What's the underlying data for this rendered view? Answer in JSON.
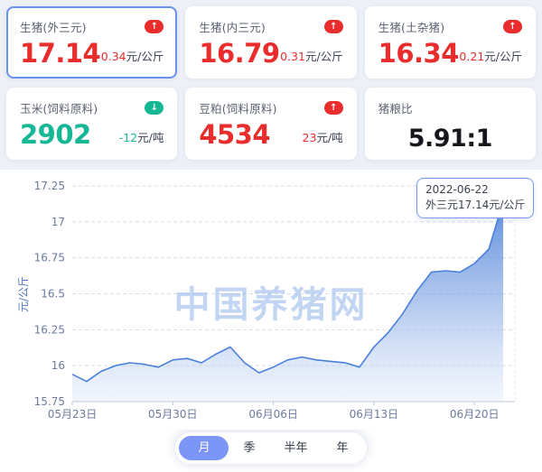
{
  "colors": {
    "red": "#e92c2c",
    "green": "#15b795",
    "line_blue": "#4a80db",
    "selected_border": "#6a92f0",
    "tab_active_bg": "#7b96f6",
    "tooltip_border": "#6c9cf5",
    "watermark_blue": "#8fb2e8"
  },
  "cards": [
    {
      "label": "生猪(外三元)",
      "value": "17.14",
      "change": "0.34",
      "change_unit": "元/公斤",
      "trend": "up",
      "selected": true
    },
    {
      "label": "生猪(内三元)",
      "value": "16.79",
      "change": "0.31",
      "change_unit": "元/公斤",
      "trend": "up",
      "selected": false
    },
    {
      "label": "生猪(土杂猪)",
      "value": "16.34",
      "change": "0.21",
      "change_unit": "元/公斤",
      "trend": "up",
      "selected": false
    },
    {
      "label": "玉米(饲料原料)",
      "value": "2902",
      "change": "-12",
      "change_unit": "元/吨",
      "trend": "down",
      "selected": false
    },
    {
      "label": "豆粕(饲料原料)",
      "value": "4534",
      "change": "23",
      "change_unit": "元/吨",
      "trend": "up",
      "selected": false
    },
    {
      "label": "猪粮比",
      "value": "5.91:1",
      "change": "",
      "change_unit": "",
      "trend": "none",
      "selected": false
    }
  ],
  "chart_data": {
    "type": "area",
    "series_name": "外三元",
    "x": [
      "2022-05-23",
      "2022-05-24",
      "2022-05-25",
      "2022-05-26",
      "2022-05-27",
      "2022-05-28",
      "2022-05-29",
      "2022-05-30",
      "2022-05-31",
      "2022-06-01",
      "2022-06-02",
      "2022-06-03",
      "2022-06-04",
      "2022-06-05",
      "2022-06-06",
      "2022-06-07",
      "2022-06-08",
      "2022-06-09",
      "2022-06-10",
      "2022-06-11",
      "2022-06-12",
      "2022-06-13",
      "2022-06-14",
      "2022-06-15",
      "2022-06-16",
      "2022-06-17",
      "2022-06-18",
      "2022-06-19",
      "2022-06-20",
      "2022-06-21",
      "2022-06-22"
    ],
    "values": [
      15.94,
      15.89,
      15.96,
      16.0,
      16.02,
      16.01,
      15.99,
      16.04,
      16.05,
      16.02,
      16.08,
      16.13,
      16.02,
      15.95,
      15.99,
      16.04,
      16.06,
      16.04,
      16.03,
      16.02,
      15.99,
      16.13,
      16.23,
      16.36,
      16.52,
      16.65,
      16.66,
      16.65,
      16.71,
      16.81,
      17.14
    ],
    "ylabel": "元/公斤",
    "ylim": [
      15.75,
      17.25
    ],
    "y_ticks": [
      15.75,
      16,
      16.25,
      16.5,
      16.75,
      17,
      17.25
    ],
    "x_tick_labels": [
      "05月23日",
      "05月30日",
      "06月06日",
      "06月13日",
      "06月20日"
    ],
    "x_tick_indices": [
      0,
      7,
      14,
      21,
      28
    ],
    "grid": true,
    "watermark": "中国养猪网",
    "tooltip": {
      "date": "2022-06-22",
      "text": "外三元17.14元/公斤"
    }
  },
  "tabs": {
    "items": [
      "月",
      "季",
      "半年",
      "年"
    ],
    "selected": 0
  }
}
